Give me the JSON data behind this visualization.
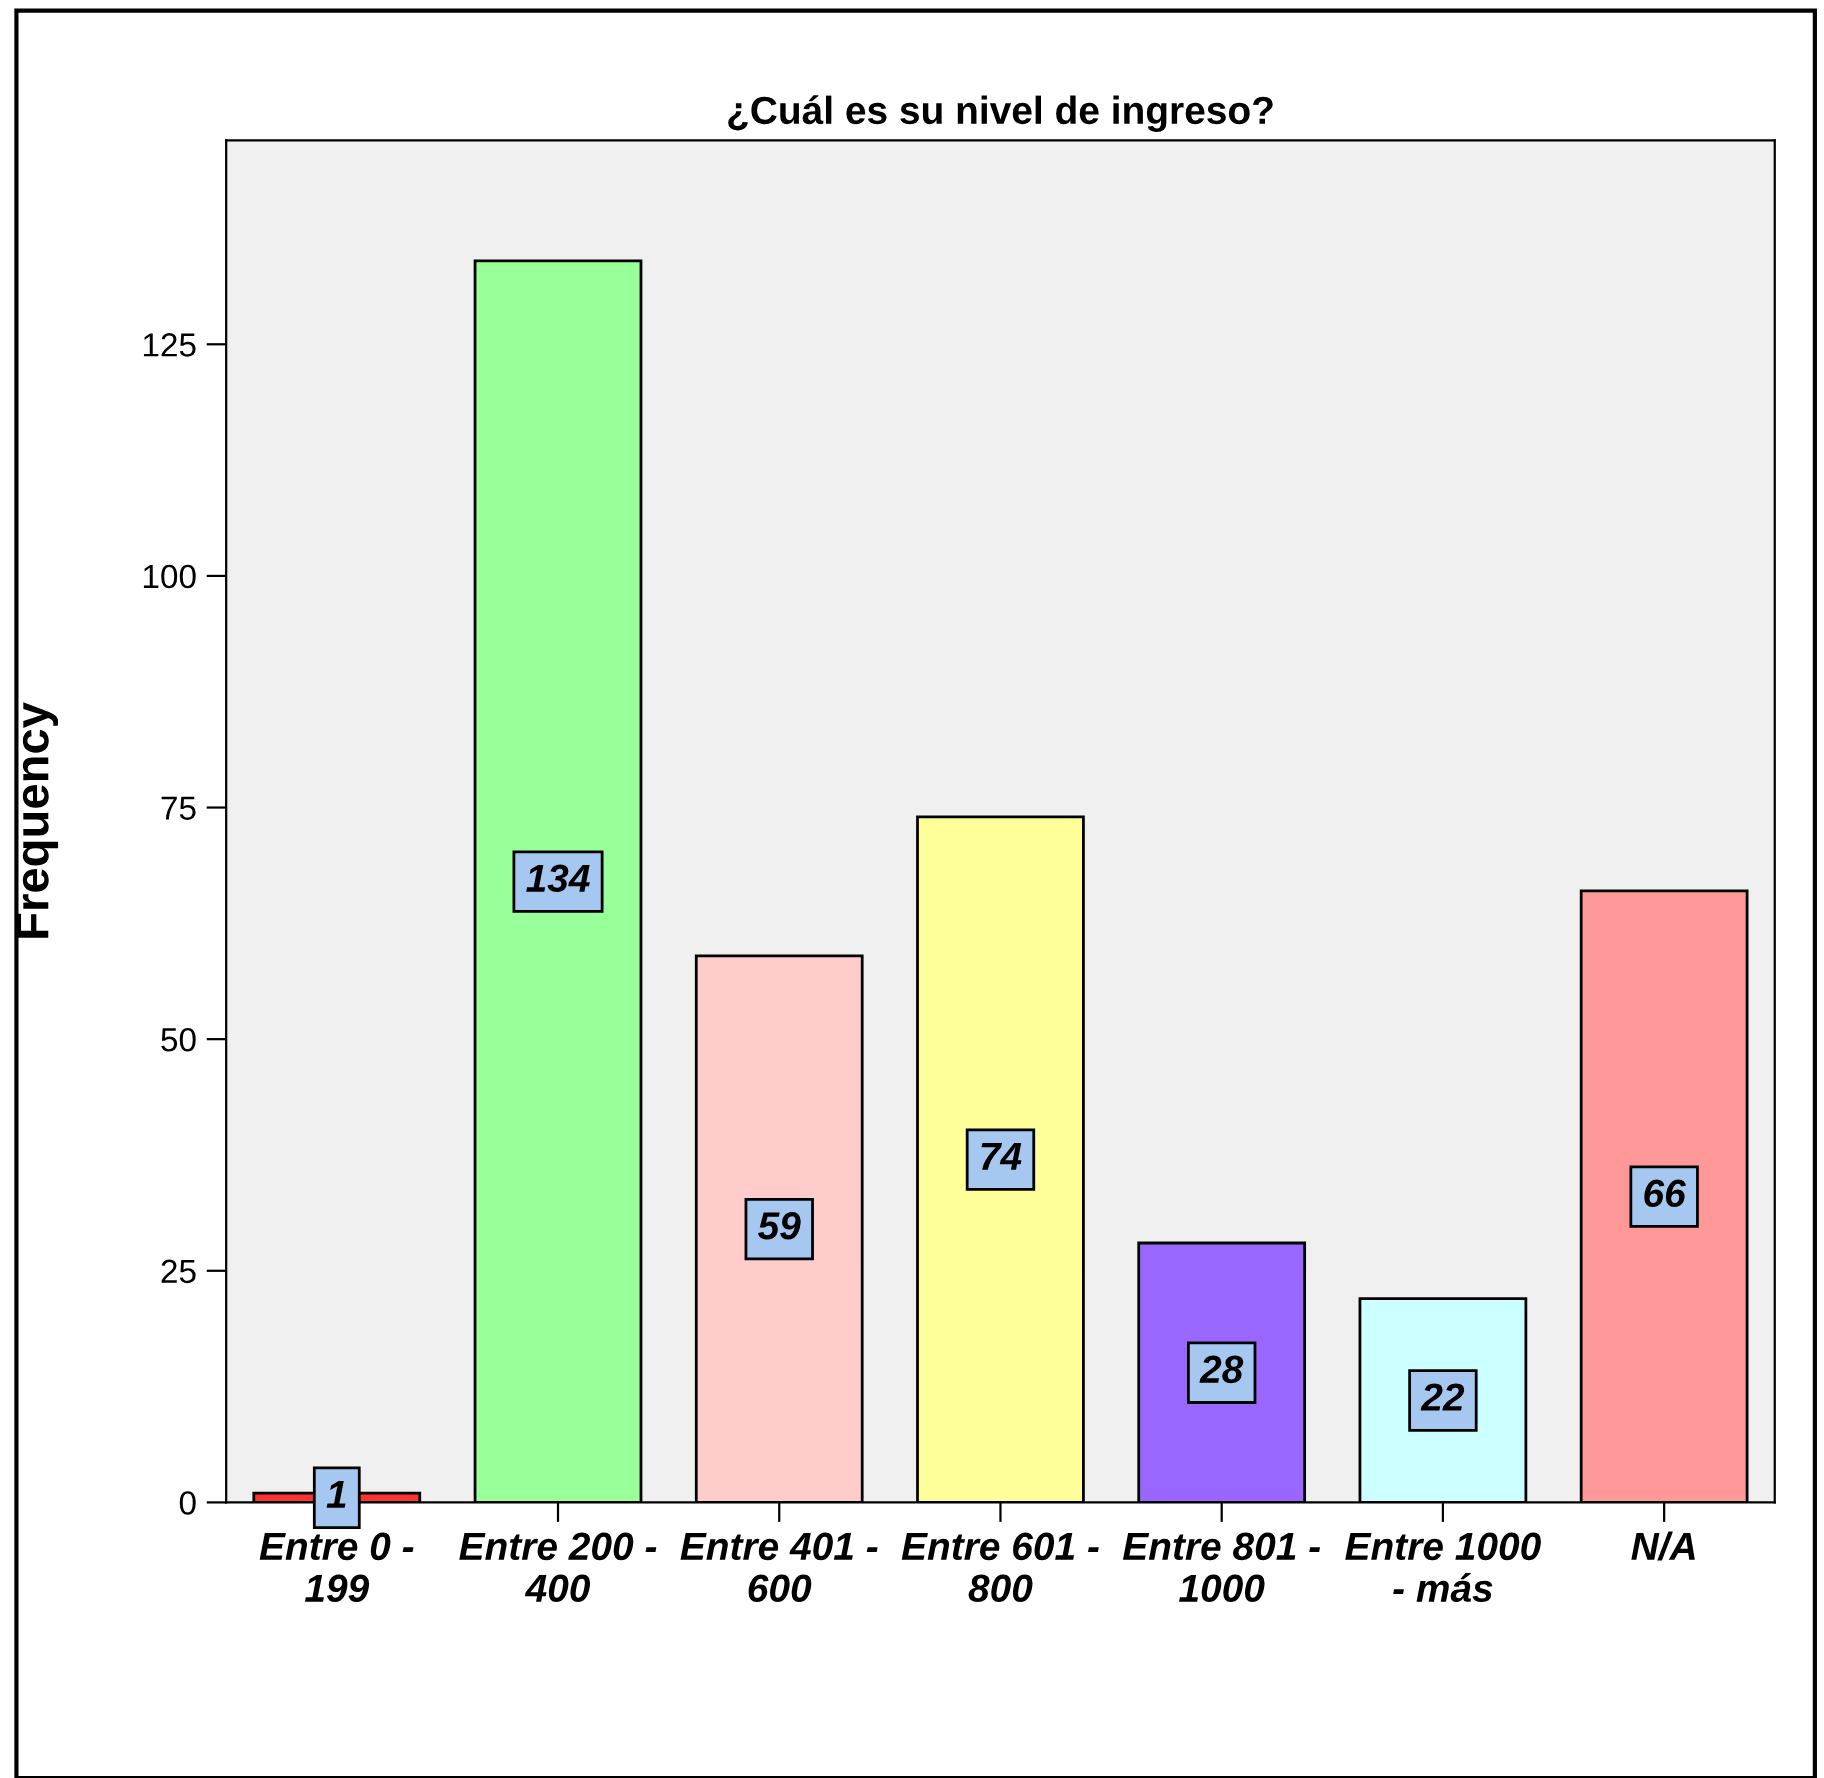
{
  "chart_data": {
    "type": "bar",
    "title": "¿Cuál es su nivel de ingreso?",
    "ylabel": "Frequency",
    "categories": [
      "Entre 0 -\n199",
      "Entre 200 -\n400",
      "Entre 401 -\n600",
      "Entre 601 -\n800",
      "Entre 801 -\n1000",
      "Entre 1000\n- más",
      "N/A"
    ],
    "values": [
      1,
      134,
      59,
      74,
      28,
      22,
      66
    ],
    "colors": [
      "#ff3333",
      "#99ff99",
      "#ffcccc",
      "#ffff99",
      "#9966ff",
      "#ccffff",
      "#ff9999"
    ],
    "ylim": [
      0,
      147
    ],
    "yticks": [
      0,
      25,
      50,
      75,
      100,
      125
    ],
    "grid": false,
    "data_labels": true
  }
}
